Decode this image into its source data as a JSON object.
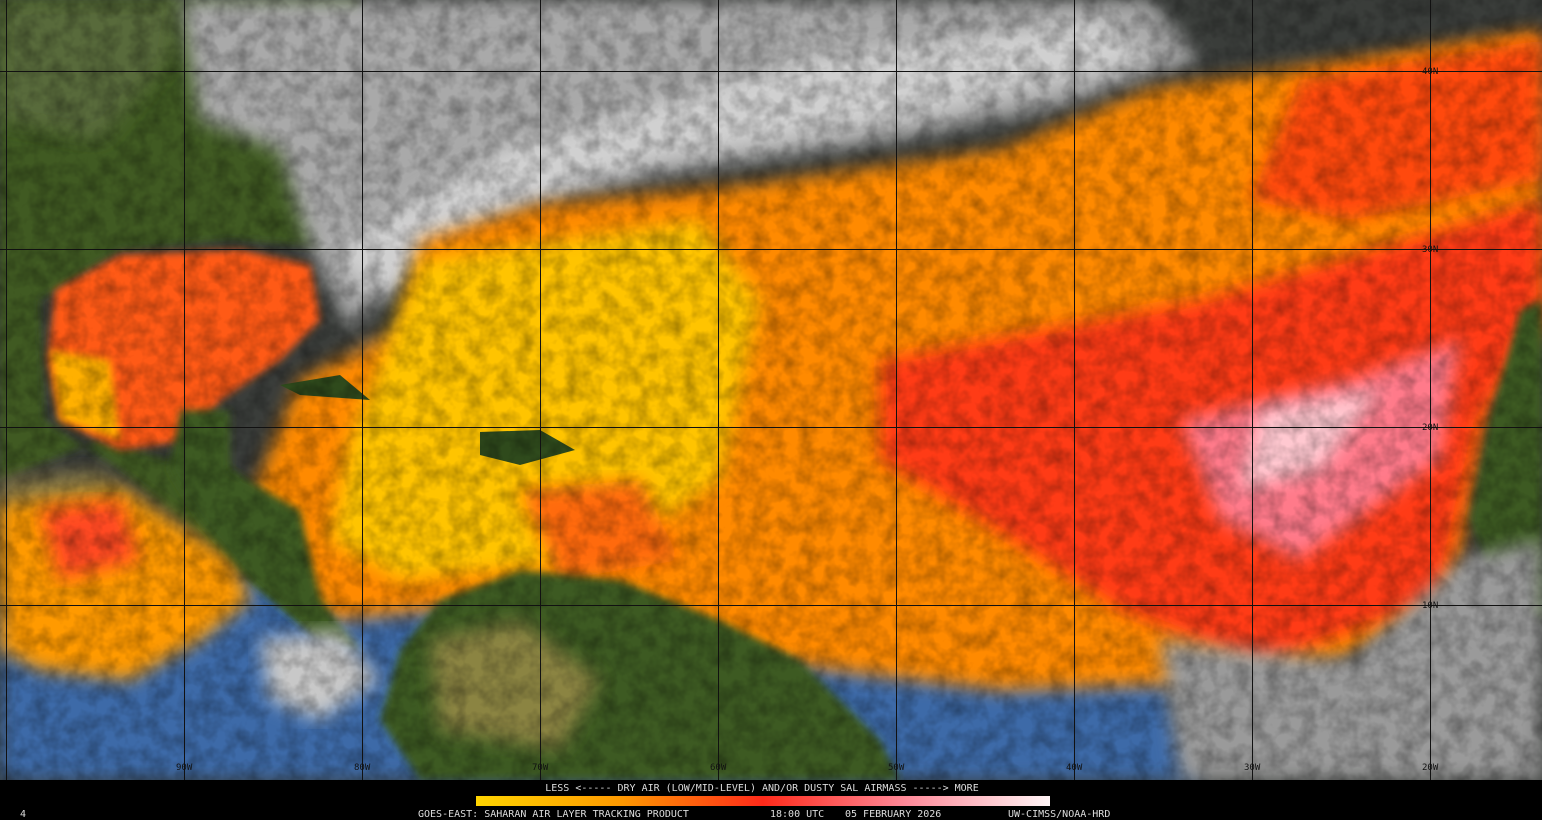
{
  "map": {
    "lat_labels": [
      "40N",
      "30N",
      "20N",
      "10N"
    ],
    "lon_labels": [
      "90W",
      "80W",
      "70W",
      "60W",
      "50W",
      "40W",
      "30W",
      "20W"
    ],
    "legend": {
      "caption": "LESS <----- DRY AIR (LOW/MID-LEVEL) AND/OR DUSTY SAL AIRMASS -----> MORE"
    },
    "footer": {
      "frame": "4",
      "product": "GOES-EAST: SAHARAN AIR LAYER TRACKING PRODUCT",
      "time": "18:00 UTC",
      "date": "05 FEBRUARY 2026",
      "credit": "UW-CIMSS/NOAA-HRD"
    }
  }
}
